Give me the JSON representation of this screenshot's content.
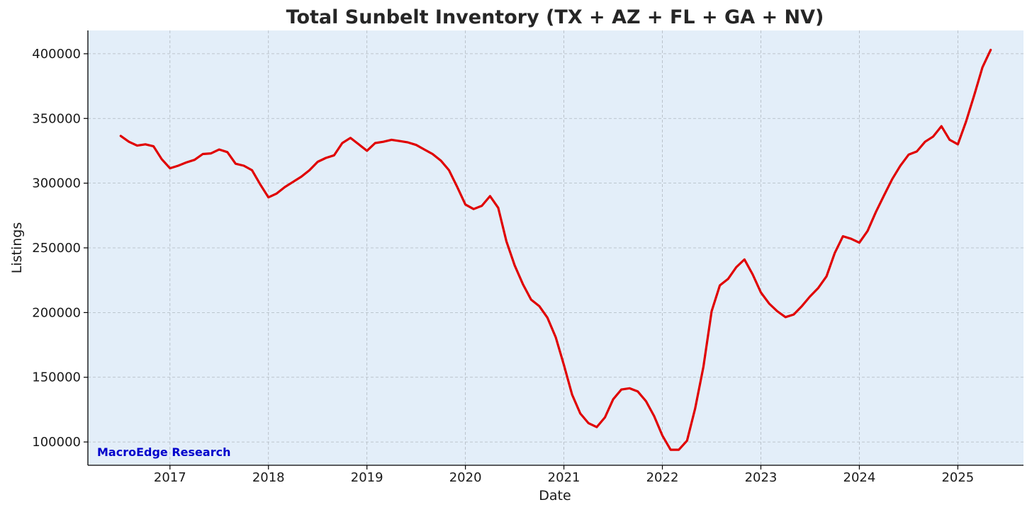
{
  "chart_data": {
    "type": "line",
    "title": "Total Sunbelt Inventory (TX + AZ + FL + GA + NV)",
    "xlabel": "Date",
    "ylabel": "Listings",
    "watermark": "MacroEdge Research",
    "xlim": [
      "2016-03",
      "2025-09"
    ],
    "ylim": [
      82000,
      418000
    ],
    "xticks": [
      "2017",
      "2018",
      "2019",
      "2020",
      "2021",
      "2022",
      "2023",
      "2024",
      "2025"
    ],
    "yticks": [
      100000,
      150000,
      200000,
      250000,
      300000,
      350000,
      400000
    ],
    "ytick_labels": [
      "100000",
      "150000",
      "200000",
      "250000",
      "300000",
      "350000",
      "400000"
    ],
    "grid": true,
    "plot_background": "#e3eef9",
    "series": [
      {
        "color": "#e00000",
        "x": [
          "2016-07",
          "2016-08",
          "2016-09",
          "2016-10",
          "2016-11",
          "2016-12",
          "2017-01",
          "2017-02",
          "2017-03",
          "2017-04",
          "2017-05",
          "2017-06",
          "2017-07",
          "2017-08",
          "2017-09",
          "2017-10",
          "2017-11",
          "2017-12",
          "2018-01",
          "2018-02",
          "2018-03",
          "2018-04",
          "2018-05",
          "2018-06",
          "2018-07",
          "2018-08",
          "2018-09",
          "2018-10",
          "2018-11",
          "2018-12",
          "2019-01",
          "2019-02",
          "2019-03",
          "2019-04",
          "2019-05",
          "2019-06",
          "2019-07",
          "2019-08",
          "2019-09",
          "2019-10",
          "2019-11",
          "2019-12",
          "2020-01",
          "2020-02",
          "2020-03",
          "2020-04",
          "2020-05",
          "2020-06",
          "2020-07",
          "2020-08",
          "2020-09",
          "2020-10",
          "2020-11",
          "2020-12",
          "2021-01",
          "2021-02",
          "2021-03",
          "2021-04",
          "2021-05",
          "2021-06",
          "2021-07",
          "2021-08",
          "2021-09",
          "2021-10",
          "2021-11",
          "2021-12",
          "2022-01",
          "2022-02",
          "2022-03",
          "2022-04",
          "2022-05",
          "2022-06",
          "2022-07",
          "2022-08",
          "2022-09",
          "2022-10",
          "2022-11",
          "2022-12",
          "2023-01",
          "2023-02",
          "2023-03",
          "2023-04",
          "2023-05",
          "2023-06",
          "2023-07",
          "2023-08",
          "2023-09",
          "2023-10",
          "2023-11",
          "2023-12",
          "2024-01",
          "2024-02",
          "2024-03",
          "2024-04",
          "2024-05",
          "2024-06",
          "2024-07",
          "2024-08",
          "2024-09",
          "2024-10",
          "2024-11",
          "2024-12",
          "2025-01",
          "2025-02",
          "2025-03",
          "2025-04",
          "2025-05"
        ],
        "y": [
          336500,
          332000,
          329000,
          330000,
          328500,
          318500,
          311500,
          313500,
          316000,
          318000,
          322500,
          323000,
          326000,
          324000,
          315000,
          313500,
          310000,
          299000,
          289000,
          292000,
          297000,
          301000,
          305000,
          310000,
          316500,
          319500,
          321500,
          331000,
          335000,
          330000,
          325000,
          331000,
          332000,
          333500,
          332500,
          331500,
          329500,
          326000,
          322500,
          317500,
          310000,
          297000,
          283500,
          280000,
          282500,
          290000,
          281000,
          255000,
          236500,
          222000,
          210000,
          205000,
          196000,
          181000,
          159500,
          136500,
          122000,
          114500,
          111500,
          119000,
          133000,
          140500,
          141500,
          139000,
          131500,
          120000,
          105000,
          94000,
          94000,
          101000,
          126000,
          158000,
          201000,
          221000,
          226000,
          235000,
          241000,
          229500,
          215500,
          207000,
          201000,
          196500,
          198500,
          205000,
          212500,
          219000,
          228000,
          246000,
          259000,
          257000,
          254000,
          263000,
          277500,
          290500,
          303000,
          313500,
          322000,
          324500,
          332000,
          336000,
          344000,
          333500,
          330000,
          347500,
          368000,
          389500,
          403000
        ]
      }
    ]
  }
}
